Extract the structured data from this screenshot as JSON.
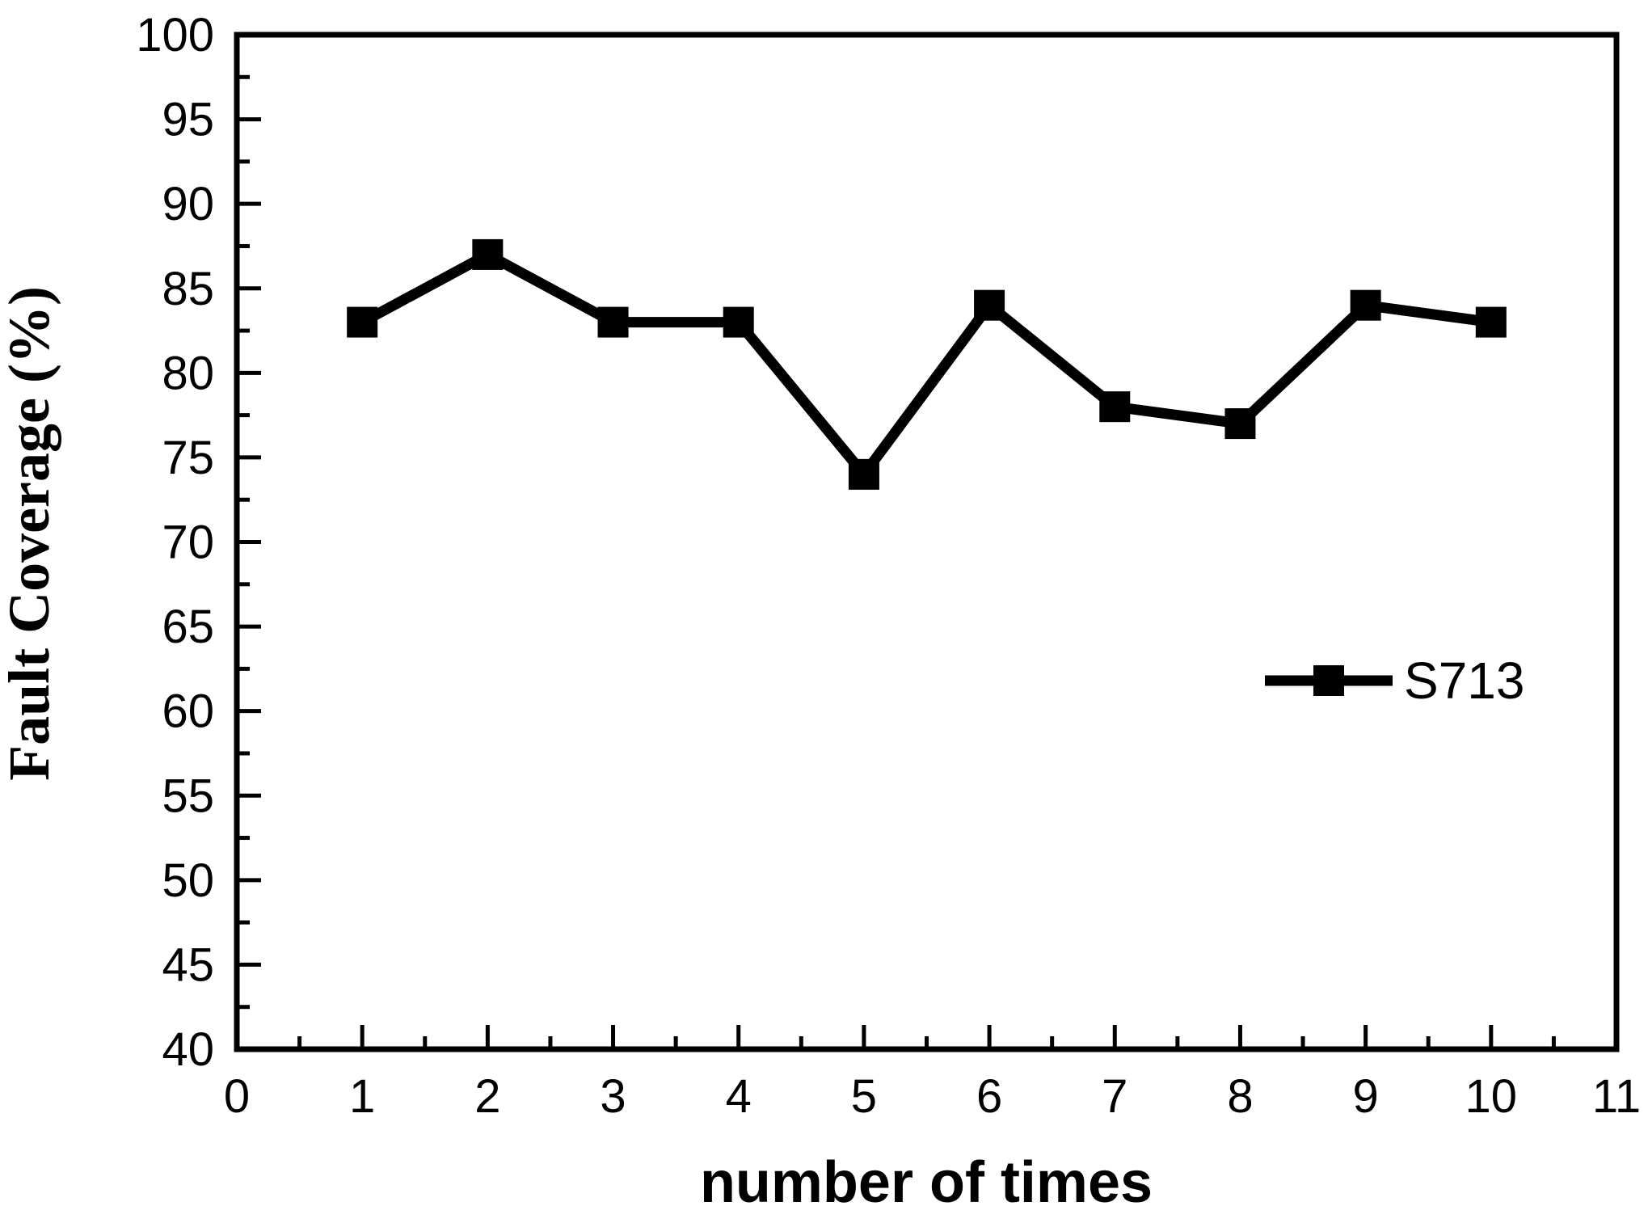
{
  "chart_data": {
    "type": "line",
    "title": "",
    "xlabel": "number of times",
    "ylabel": "Fault Coverage (%)",
    "grid": false,
    "background_color": "#ffffff",
    "line_color": "#000000",
    "marker": "square",
    "legend_position": "right-center",
    "x_axis": {
      "min": 0,
      "max": 11,
      "major_tick_step": 1,
      "minor_tick_step": 0.5,
      "tick_labels": [
        "0",
        "1",
        "2",
        "3",
        "4",
        "5",
        "6",
        "7",
        "8",
        "9",
        "10",
        "11"
      ]
    },
    "y_axis": {
      "min": 40,
      "max": 100,
      "major_tick_step": 5,
      "minor_tick_step": 2.5,
      "tick_labels": [
        "40",
        "45",
        "50",
        "55",
        "60",
        "65",
        "70",
        "75",
        "80",
        "85",
        "90",
        "95",
        "100"
      ]
    },
    "series": [
      {
        "name": "S713",
        "x": [
          1,
          2,
          3,
          4,
          5,
          6,
          7,
          8,
          9,
          10
        ],
        "y": [
          83,
          87,
          83,
          83,
          74,
          84,
          78,
          77,
          84,
          83
        ]
      }
    ],
    "legend": {
      "entries": [
        {
          "label": "S713",
          "marker": "square",
          "color": "#000000"
        }
      ]
    }
  }
}
